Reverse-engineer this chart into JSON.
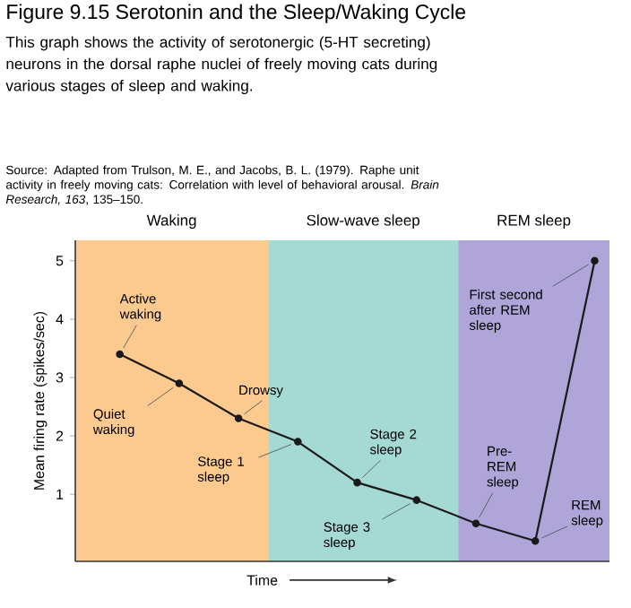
{
  "chart_data": {
    "type": "line",
    "title": "Figure 9.15 Serotonin and the Sleep/Waking Cycle",
    "subtitle": "This graph shows the activity of serotonergic (5-HT secreting) neurons in the dorsal raphe nuclei of freely moving cats during various stages of sleep and waking.",
    "annotations": [
      "Source: Adapted from Trulson, M. E., and Jacobs, B. L. (1979). Raphe unit activity in freely moving cats: Correlation with level of behavioral arousal. *Brain Research, 163*, 135–150.",
      "Waking",
      "Slow-wave sleep",
      "REM sleep",
      "Active waking",
      "Quiet waking",
      "Drowsy",
      "Stage 1 sleep",
      "Stage 2 sleep",
      "Stage 3 sleep",
      "Pre-REM sleep",
      "REM sleep",
      "First second after REM sleep"
    ],
    "categories": [
      null,
      null,
      null,
      null,
      null,
      null,
      null,
      null,
      null
    ],
    "values": [
      3.4,
      2.9,
      2.3,
      1.9,
      1.2,
      0.9,
      0.5,
      0.2,
      5.0
    ],
    "color": "#1a1a1a",
    "marker": "circle",
    "line_style": "solid",
    "grid": false,
    "xlabel": "Time",
    "ylabel": "Mean firing rate (spikes/sec)",
    "ylim": [
      -0.15,
      5.35
    ],
    "yticks": [
      1,
      2,
      3,
      4,
      5
    ],
    "tick_labels": "y"
  }
}
